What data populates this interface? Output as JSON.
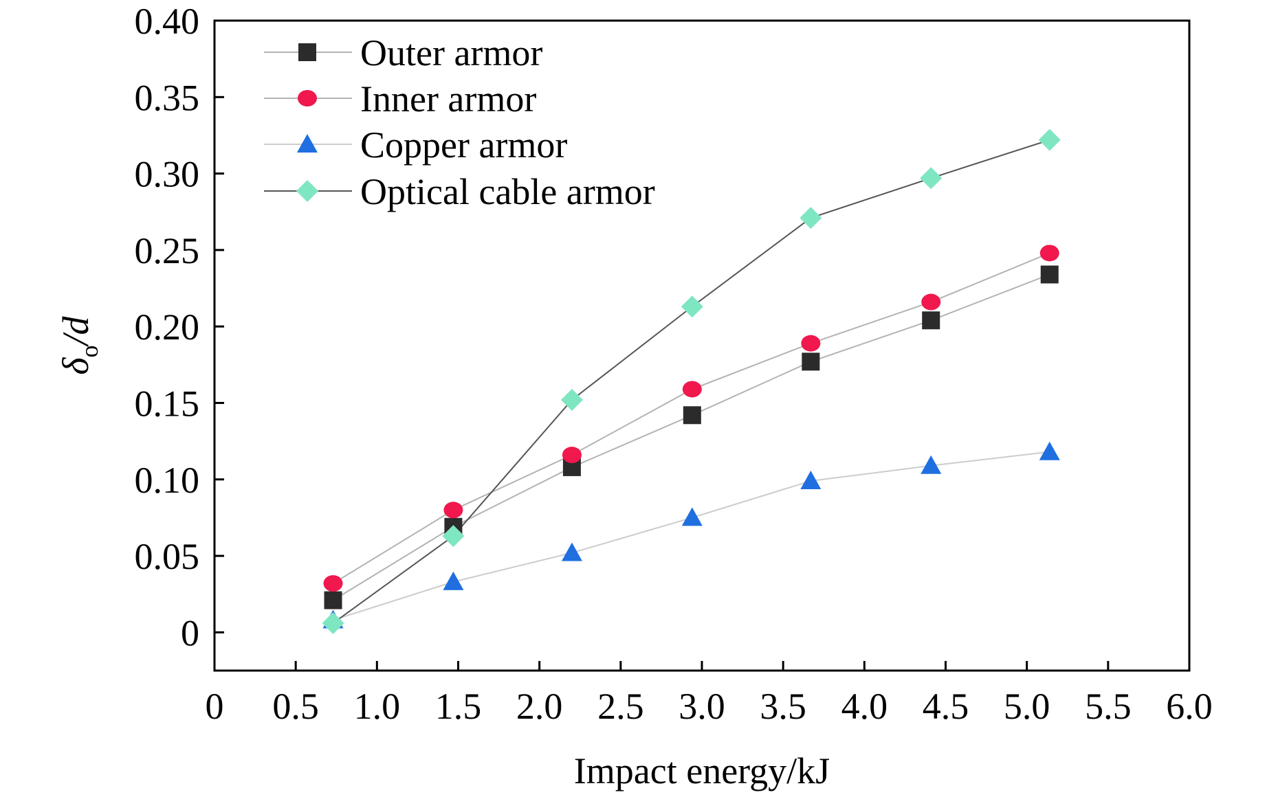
{
  "chart_data": {
    "type": "line",
    "xlabel": "Impact energy/kJ",
    "ylabel": "δo/d",
    "ylabel_main": "δ",
    "ylabel_sub": "o",
    "ylabel_tail": "/d",
    "xlim": [
      0,
      6.0
    ],
    "ylim": [
      -0.025,
      0.4
    ],
    "x_ticks": [
      0,
      0.5,
      1.0,
      1.5,
      2.0,
      2.5,
      3.0,
      3.5,
      4.0,
      4.5,
      5.0,
      5.5,
      6.0
    ],
    "x_tick_labels": [
      "0",
      "0.5",
      "1.0",
      "1.5",
      "2.0",
      "2.5",
      "3.0",
      "3.5",
      "4.0",
      "4.5",
      "5.0",
      "5.5",
      "6.0"
    ],
    "y_ticks": [
      0,
      0.05,
      0.1,
      0.15,
      0.2,
      0.25,
      0.3,
      0.35,
      0.4
    ],
    "y_tick_labels": [
      "0",
      "0.05",
      "0.10",
      "0.15",
      "0.20",
      "0.25",
      "0.30",
      "0.35",
      "0.40"
    ],
    "grid": false,
    "legend_position": "top-left",
    "x": [
      0.73,
      1.47,
      2.2,
      2.94,
      3.67,
      4.41,
      5.14
    ],
    "series": [
      {
        "name": "Outer armor",
        "marker": "square",
        "color": "#2b2b2b",
        "line_color": "#b3b3b3",
        "values": [
          0.021,
          0.069,
          0.108,
          0.142,
          0.177,
          0.204,
          0.234
        ]
      },
      {
        "name": "Inner armor",
        "marker": "circle",
        "color": "#f0184d",
        "line_color": "#b3b3b3",
        "values": [
          0.032,
          0.08,
          0.116,
          0.159,
          0.189,
          0.216,
          0.248
        ]
      },
      {
        "name": "Copper armor",
        "marker": "triangle",
        "color": "#1f6fe0",
        "line_color": "#cccccc",
        "values": [
          0.008,
          0.033,
          0.052,
          0.075,
          0.099,
          0.109,
          0.118
        ]
      },
      {
        "name": "Optical cable armor",
        "marker": "diamond",
        "color": "#7fe6c2",
        "line_color": "#555555",
        "values": [
          0.006,
          0.063,
          0.152,
          0.213,
          0.271,
          0.297,
          0.322
        ]
      }
    ]
  }
}
